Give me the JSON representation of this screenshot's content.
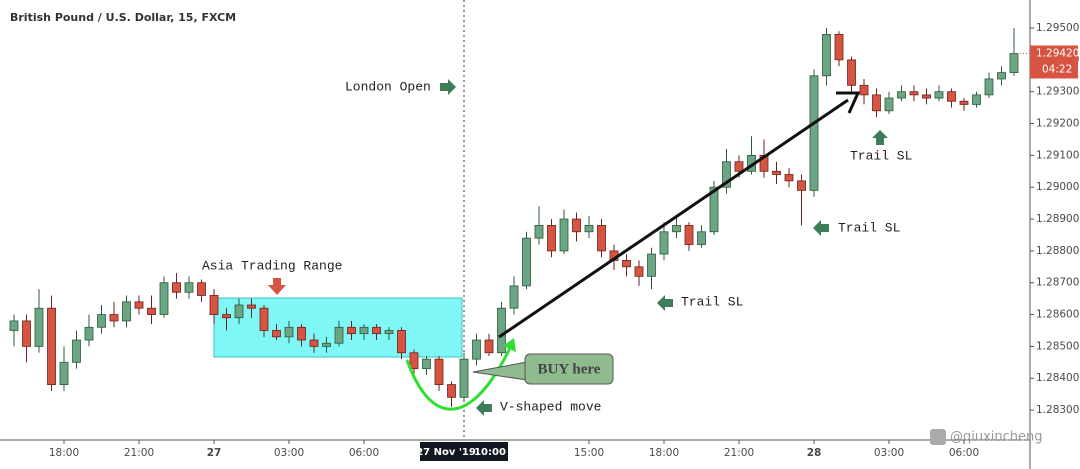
{
  "chart_data": {
    "type": "candlestick",
    "title": "British Pound / U.S. Dollar, 15, FXCM",
    "ylim": [
      1.28206,
      1.29588
    ],
    "yticks": [
      {
        "value": 1.283,
        "label": "1.28300"
      },
      {
        "value": 1.284,
        "label": "1.28400"
      },
      {
        "value": 1.285,
        "label": "1.28500"
      },
      {
        "value": 1.286,
        "label": "1.28600"
      },
      {
        "value": 1.287,
        "label": "1.28700"
      },
      {
        "value": 1.288,
        "label": "1.28800"
      },
      {
        "value": 1.289,
        "label": "1.28900"
      },
      {
        "value": 1.29,
        "label": "1.29000"
      },
      {
        "value": 1.291,
        "label": "1.29100"
      },
      {
        "value": 1.292,
        "label": "1.29200"
      },
      {
        "value": 1.293,
        "label": "1.29300"
      },
      {
        "value": 1.294,
        "label": "1.29400"
      },
      {
        "value": 1.295,
        "label": "1.29500"
      }
    ],
    "xticks": [
      {
        "value": 4,
        "label": "18:00"
      },
      {
        "value": 10,
        "label": "21:00"
      },
      {
        "value": 16,
        "label": "27"
      },
      {
        "value": 22,
        "label": "03:00"
      },
      {
        "value": 28,
        "label": "06:00"
      },
      {
        "value": 46,
        "label": "15:00"
      },
      {
        "value": 52,
        "label": "18:00"
      },
      {
        "value": 58,
        "label": "21:00"
      },
      {
        "value": 64,
        "label": "28"
      },
      {
        "value": 70,
        "label": "03:00"
      },
      {
        "value": 76,
        "label": "06:00"
      }
    ],
    "up_color": "#6ba583",
    "down_color": "#d75442",
    "grid": false,
    "crosshair": {
      "value": 36,
      "date": "27 Nov '19",
      "time": "10:00"
    },
    "price_tag": {
      "value": 1.2942,
      "label": "1.29420"
    },
    "countdown": "04:22",
    "annotations": {
      "london": "London Open",
      "asia": "Asia Trading Range",
      "buy": "BUY here",
      "v": "V-shaped move",
      "trail1": "Trail SL",
      "trail2": "Trail SL",
      "trail3": "Trail SL",
      "watermark": "@qiuxincheng"
    },
    "ohlc": [
      [
        1.2855,
        1.286,
        1.285,
        1.2858
      ],
      [
        1.2858,
        1.286,
        1.2845,
        1.285
      ],
      [
        1.285,
        1.2868,
        1.2848,
        1.2862
      ],
      [
        1.2862,
        1.2866,
        1.2836,
        1.2838
      ],
      [
        1.2838,
        1.285,
        1.2836,
        1.2845
      ],
      [
        1.2845,
        1.2855,
        1.2843,
        1.2852
      ],
      [
        1.2852,
        1.286,
        1.285,
        1.2856
      ],
      [
        1.2856,
        1.2863,
        1.2854,
        1.286
      ],
      [
        1.286,
        1.2864,
        1.2856,
        1.2858
      ],
      [
        1.2858,
        1.2866,
        1.2856,
        1.2864
      ],
      [
        1.2864,
        1.2866,
        1.286,
        1.2862
      ],
      [
        1.2862,
        1.2866,
        1.2857,
        1.286
      ],
      [
        1.286,
        1.2872,
        1.2859,
        1.287
      ],
      [
        1.287,
        1.2873,
        1.2865,
        1.2867
      ],
      [
        1.2867,
        1.2872,
        1.2865,
        1.287
      ],
      [
        1.287,
        1.2871,
        1.2864,
        1.2866
      ],
      [
        1.2866,
        1.2868,
        1.2857,
        1.286
      ],
      [
        1.286,
        1.2862,
        1.2855,
        1.2859
      ],
      [
        1.2859,
        1.2865,
        1.2857,
        1.2863
      ],
      [
        1.2863,
        1.2865,
        1.2859,
        1.2862
      ],
      [
        1.2862,
        1.2863,
        1.2853,
        1.2855
      ],
      [
        1.2855,
        1.2857,
        1.2852,
        1.2853
      ],
      [
        1.2853,
        1.2858,
        1.2851,
        1.2856
      ],
      [
        1.2856,
        1.2857,
        1.285,
        1.2852
      ],
      [
        1.2852,
        1.2854,
        1.2848,
        1.285
      ],
      [
        1.285,
        1.2853,
        1.2848,
        1.2851
      ],
      [
        1.2851,
        1.2858,
        1.285,
        1.2856
      ],
      [
        1.2856,
        1.2858,
        1.2852,
        1.2854
      ],
      [
        1.2854,
        1.2857,
        1.2852,
        1.2856
      ],
      [
        1.2856,
        1.2857,
        1.2852,
        1.2854
      ],
      [
        1.2854,
        1.2856,
        1.2852,
        1.2855
      ],
      [
        1.2855,
        1.2856,
        1.2846,
        1.2848
      ],
      [
        1.2848,
        1.2849,
        1.2841,
        1.2843
      ],
      [
        1.2843,
        1.2847,
        1.2841,
        1.2846
      ],
      [
        1.2846,
        1.2847,
        1.2836,
        1.2838
      ],
      [
        1.2838,
        1.2839,
        1.2831,
        1.2834
      ],
      [
        1.2834,
        1.2848,
        1.2833,
        1.2846
      ],
      [
        1.2846,
        1.2854,
        1.2844,
        1.2852
      ],
      [
        1.2852,
        1.2854,
        1.2847,
        1.2848
      ],
      [
        1.2848,
        1.2864,
        1.2847,
        1.2862
      ],
      [
        1.2862,
        1.2872,
        1.286,
        1.2869
      ],
      [
        1.2869,
        1.2886,
        1.2868,
        1.2884
      ],
      [
        1.2884,
        1.2894,
        1.2882,
        1.2888
      ],
      [
        1.2888,
        1.289,
        1.2878,
        1.288
      ],
      [
        1.288,
        1.2893,
        1.2879,
        1.289
      ],
      [
        1.289,
        1.2892,
        1.2883,
        1.2886
      ],
      [
        1.2886,
        1.2891,
        1.2884,
        1.2888
      ],
      [
        1.2888,
        1.289,
        1.2878,
        1.288
      ],
      [
        1.288,
        1.2882,
        1.2874,
        1.2877
      ],
      [
        1.2877,
        1.2879,
        1.2872,
        1.2875
      ],
      [
        1.2875,
        1.2877,
        1.2869,
        1.2872
      ],
      [
        1.2872,
        1.2881,
        1.2868,
        1.2879
      ],
      [
        1.2879,
        1.2889,
        1.2877,
        1.2886
      ],
      [
        1.2886,
        1.2891,
        1.2884,
        1.2888
      ],
      [
        1.2888,
        1.2889,
        1.288,
        1.2882
      ],
      [
        1.2882,
        1.2888,
        1.2881,
        1.2886
      ],
      [
        1.2886,
        1.2902,
        1.2885,
        1.29
      ],
      [
        1.29,
        1.2912,
        1.2898,
        1.2908
      ],
      [
        1.2908,
        1.291,
        1.2903,
        1.2905
      ],
      [
        1.2905,
        1.2916,
        1.2904,
        1.291
      ],
      [
        1.291,
        1.2915,
        1.2903,
        1.2905
      ],
      [
        1.2905,
        1.2908,
        1.2901,
        1.2904
      ],
      [
        1.2904,
        1.2906,
        1.29,
        1.2902
      ],
      [
        1.2902,
        1.2904,
        1.2888,
        1.2899
      ],
      [
        1.2899,
        1.2937,
        1.2897,
        1.2935
      ],
      [
        1.2935,
        1.295,
        1.2932,
        1.2948
      ],
      [
        1.2948,
        1.2949,
        1.2938,
        1.294
      ],
      [
        1.294,
        1.2941,
        1.293,
        1.2932
      ],
      [
        1.2932,
        1.2934,
        1.2926,
        1.2929
      ],
      [
        1.2929,
        1.2931,
        1.2922,
        1.2924
      ],
      [
        1.2924,
        1.293,
        1.2923,
        1.2928
      ],
      [
        1.2928,
        1.2932,
        1.2927,
        1.293
      ],
      [
        1.293,
        1.2932,
        1.2927,
        1.2929
      ],
      [
        1.2929,
        1.2931,
        1.2926,
        1.2928
      ],
      [
        1.2928,
        1.2932,
        1.2927,
        1.293
      ],
      [
        1.293,
        1.2931,
        1.2925,
        1.2927
      ],
      [
        1.2927,
        1.2928,
        1.2924,
        1.2926
      ],
      [
        1.2926,
        1.293,
        1.2925,
        1.2929
      ],
      [
        1.2929,
        1.2936,
        1.2928,
        1.2934
      ],
      [
        1.2934,
        1.2938,
        1.2932,
        1.2936
      ],
      [
        1.2936,
        1.295,
        1.2935,
        1.2942
      ]
    ]
  }
}
